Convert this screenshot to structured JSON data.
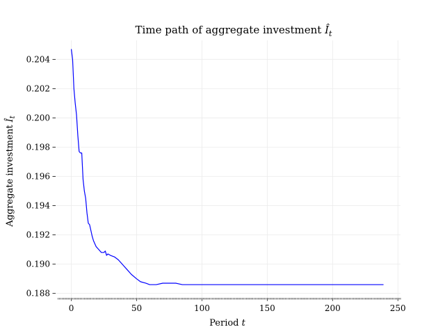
{
  "chart_data": {
    "type": "line",
    "title_main": "Time path of aggregate investment ",
    "title_var": "Î",
    "title_sub": "t",
    "xlabel_main": "Period ",
    "xlabel_var": "t",
    "ylabel_main": "Aggregate investment ",
    "ylabel_var": "Î",
    "ylabel_sub": "t",
    "xlim": [
      -12,
      252
    ],
    "ylim": [
      0.1877,
      0.2053
    ],
    "xticks": [
      0,
      50,
      100,
      150,
      200,
      250
    ],
    "xtick_labels": [
      "0",
      "50",
      "100",
      "150",
      "200",
      "250"
    ],
    "yticks": [
      0.188,
      0.19,
      0.192,
      0.194,
      0.196,
      0.198,
      0.2,
      0.202,
      0.204
    ],
    "ytick_labels": [
      "0.188",
      "0.190",
      "0.192",
      "0.194",
      "0.196",
      "0.198",
      "0.200",
      "0.202",
      "0.204"
    ],
    "grid": true,
    "minor_x_ticks": "every period",
    "series": [
      {
        "color": "#0000ff",
        "x": [
          0,
          1,
          2,
          3,
          4,
          5,
          6,
          7,
          8,
          9,
          10,
          11,
          12,
          13,
          14,
          15,
          16,
          17,
          18,
          19,
          20,
          21,
          22,
          23,
          24,
          25,
          26,
          27,
          28,
          30,
          33,
          36,
          40,
          43,
          46,
          50,
          53,
          57,
          60,
          65,
          70,
          75,
          80,
          85,
          90,
          100,
          110,
          120,
          150,
          200,
          239
        ],
        "values": [
          0.2047,
          0.204,
          0.202,
          0.201,
          0.2002,
          0.1988,
          0.1977,
          0.1976,
          0.1976,
          0.1958,
          0.195,
          0.1945,
          0.1935,
          0.1928,
          0.1927,
          0.1923,
          0.1919,
          0.1916,
          0.1914,
          0.1912,
          0.1911,
          0.191,
          0.1909,
          0.1908,
          0.1908,
          0.1908,
          0.1909,
          0.1906,
          0.1907,
          0.1906,
          0.1905,
          0.1903,
          0.1899,
          0.1896,
          0.1893,
          0.189,
          0.1888,
          0.1887,
          0.1886,
          0.1886,
          0.1887,
          0.1887,
          0.1887,
          0.1886,
          0.1886,
          0.1886,
          0.1886,
          0.1886,
          0.1886,
          0.1886,
          0.1886
        ]
      }
    ]
  }
}
